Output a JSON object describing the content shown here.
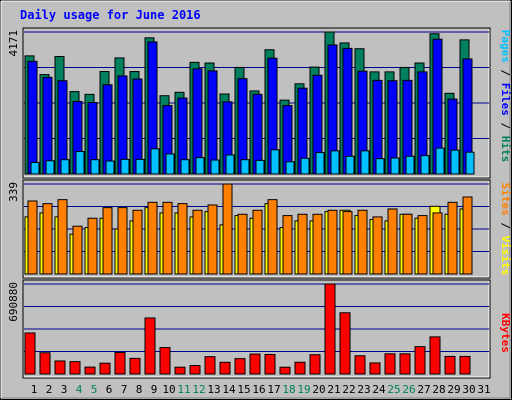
{
  "title": "Daily usage for June 2016",
  "right_labels": {
    "top": {
      "parts": [
        {
          "text": "Pages",
          "color": "#00c0ff"
        },
        {
          "text": " / ",
          "color": "#000000"
        },
        {
          "text": "Files",
          "color": "#0000ff"
        },
        {
          "text": " / ",
          "color": "#000000"
        },
        {
          "text": "Hits",
          "color": "#00805c"
        }
      ]
    },
    "mid": {
      "parts": [
        {
          "text": "Sites",
          "color": "#ff8000"
        },
        {
          "text": " / ",
          "color": "#000000"
        },
        {
          "text": "Visits",
          "color": "#ffff00"
        }
      ]
    },
    "bottom": {
      "parts": [
        {
          "text": "KBytes",
          "color": "#ff0000"
        }
      ]
    }
  },
  "colors": {
    "background": "#c0c0c0",
    "plot_background": "#c0c0c0",
    "title": "#0000ff",
    "grid": "#00008b",
    "hits": "#00805c",
    "files": "#0000ff",
    "pages": "#00c0ff",
    "visits": "#ffff00",
    "sites": "#ff8000",
    "kbytes": "#ff0000",
    "weekday_label": "#000000",
    "weekend_label": "#00805c"
  },
  "chart_data": [
    {
      "type": "bar",
      "panel": "hits-files-pages",
      "ylabel": "4171",
      "ylim": [
        0,
        4171
      ],
      "grid": true,
      "series": [
        {
          "name": "Hits",
          "color": "#00805c",
          "values": [
            3470,
            2920,
            3450,
            2420,
            2340,
            3010,
            3410,
            3010,
            4000,
            2300,
            2400,
            3280,
            3260,
            2350,
            3130,
            2440,
            3650,
            2170,
            2650,
            3140,
            4171,
            3850,
            3680,
            3000,
            3000,
            3130,
            3260,
            4120,
            2370,
            3940
          ]
        },
        {
          "name": "Files",
          "color": "#0000ff",
          "values": [
            3310,
            2840,
            2740,
            2130,
            2100,
            2620,
            2880,
            2790,
            3880,
            2010,
            2230,
            3090,
            3030,
            2120,
            2800,
            2340,
            3400,
            2010,
            2520,
            2900,
            3790,
            3690,
            3020,
            2750,
            2740,
            2750,
            3000,
            3960,
            2200,
            3380
          ]
        },
        {
          "name": "Pages",
          "color": "#00c0ff",
          "values": [
            340,
            390,
            420,
            660,
            420,
            380,
            430,
            430,
            740,
            590,
            420,
            480,
            410,
            560,
            420,
            400,
            710,
            360,
            460,
            630,
            680,
            520,
            680,
            450,
            470,
            520,
            540,
            760,
            700,
            640
          ]
        }
      ]
    },
    {
      "type": "bar",
      "panel": "visits-sites",
      "ylabel": "339",
      "ylim": [
        0,
        339
      ],
      "grid": true,
      "series": [
        {
          "name": "Visits",
          "color": "#ffff00",
          "values": [
            215,
            230,
            215,
            150,
            175,
            210,
            170,
            200,
            250,
            230,
            230,
            215,
            235,
            185,
            220,
            210,
            265,
            175,
            200,
            200,
            235,
            240,
            220,
            205,
            200,
            225,
            210,
            255,
            225,
            245
          ]
        },
        {
          "name": "Sites",
          "color": "#ff8000",
          "values": [
            275,
            265,
            280,
            180,
            210,
            250,
            250,
            240,
            270,
            270,
            265,
            240,
            260,
            339,
            225,
            240,
            280,
            220,
            225,
            225,
            240,
            235,
            240,
            215,
            245,
            225,
            220,
            230,
            270,
            290
          ]
        }
      ]
    },
    {
      "type": "bar",
      "panel": "kbytes",
      "ylabel": "690880",
      "ylim": [
        0,
        690880
      ],
      "grid": true,
      "series": [
        {
          "name": "KBytes",
          "color": "#ff0000",
          "values": [
            315000,
            163000,
            100000,
            95000,
            53000,
            83000,
            165000,
            120000,
            430000,
            203000,
            52000,
            65000,
            133000,
            90000,
            118000,
            153000,
            150000,
            52000,
            90000,
            148000,
            690880,
            470000,
            140000,
            85000,
            155000,
            155000,
            210000,
            285000,
            135000,
            135000
          ]
        }
      ]
    }
  ],
  "days": [
    {
      "label": "1",
      "weekend": false
    },
    {
      "label": "2",
      "weekend": false
    },
    {
      "label": "3",
      "weekend": false
    },
    {
      "label": "4",
      "weekend": true
    },
    {
      "label": "5",
      "weekend": true
    },
    {
      "label": "6",
      "weekend": false
    },
    {
      "label": "7",
      "weekend": false
    },
    {
      "label": "8",
      "weekend": false
    },
    {
      "label": "9",
      "weekend": false
    },
    {
      "label": "10",
      "weekend": false
    },
    {
      "label": "11",
      "weekend": true
    },
    {
      "label": "12",
      "weekend": true
    },
    {
      "label": "13",
      "weekend": false
    },
    {
      "label": "14",
      "weekend": false
    },
    {
      "label": "15",
      "weekend": false
    },
    {
      "label": "16",
      "weekend": false
    },
    {
      "label": "17",
      "weekend": false
    },
    {
      "label": "18",
      "weekend": true
    },
    {
      "label": "19",
      "weekend": true
    },
    {
      "label": "20",
      "weekend": false
    },
    {
      "label": "21",
      "weekend": false
    },
    {
      "label": "22",
      "weekend": false
    },
    {
      "label": "23",
      "weekend": false
    },
    {
      "label": "24",
      "weekend": false
    },
    {
      "label": "25",
      "weekend": true
    },
    {
      "label": "26",
      "weekend": true
    },
    {
      "label": "27",
      "weekend": false
    },
    {
      "label": "28",
      "weekend": false
    },
    {
      "label": "29",
      "weekend": false
    },
    {
      "label": "30",
      "weekend": false
    },
    {
      "label": "31",
      "weekend": false
    }
  ]
}
